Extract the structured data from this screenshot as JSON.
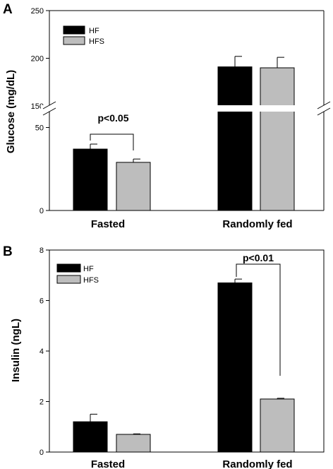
{
  "colors": {
    "HF": "#000000",
    "HFS": "#bdbdbd"
  },
  "chart_data": [
    {
      "panel": "A",
      "type": "bar",
      "ylabel": "Glucose (mg/dL)",
      "categories": [
        "Fasted",
        "Randomly fed"
      ],
      "series": [
        {
          "name": "HF",
          "values": [
            37,
            191
          ],
          "errors": [
            3,
            11
          ]
        },
        {
          "name": "HFS",
          "values": [
            29,
            190
          ],
          "errors": [
            2,
            11
          ]
        }
      ],
      "ylim": [
        0,
        250
      ],
      "axis_break": [
        60,
        150
      ],
      "yticks": [
        "0",
        "50",
        "150",
        "200",
        "250"
      ],
      "legend": {
        "position": "top-left",
        "entries": [
          "HF",
          "HFS"
        ]
      },
      "annotations": [
        {
          "text": "p<0.05",
          "category": "Fasted"
        }
      ]
    },
    {
      "panel": "B",
      "type": "bar",
      "ylabel": "Insulin (ngL)",
      "categories": [
        "Fasted",
        "Randomly fed"
      ],
      "series": [
        {
          "name": "HF",
          "values": [
            1.2,
            6.7
          ],
          "errors": [
            0.3,
            0.15
          ]
        },
        {
          "name": "HFS",
          "values": [
            0.7,
            2.1
          ],
          "errors": [
            0.02,
            0.03
          ]
        }
      ],
      "ylim": [
        0,
        8
      ],
      "yticks": [
        "0",
        "2",
        "4",
        "6",
        "8"
      ],
      "legend": {
        "position": "top-left",
        "entries": [
          "HF",
          "HFS"
        ]
      },
      "annotations": [
        {
          "text": "p<0.01",
          "category": "Randomly fed"
        }
      ]
    }
  ]
}
